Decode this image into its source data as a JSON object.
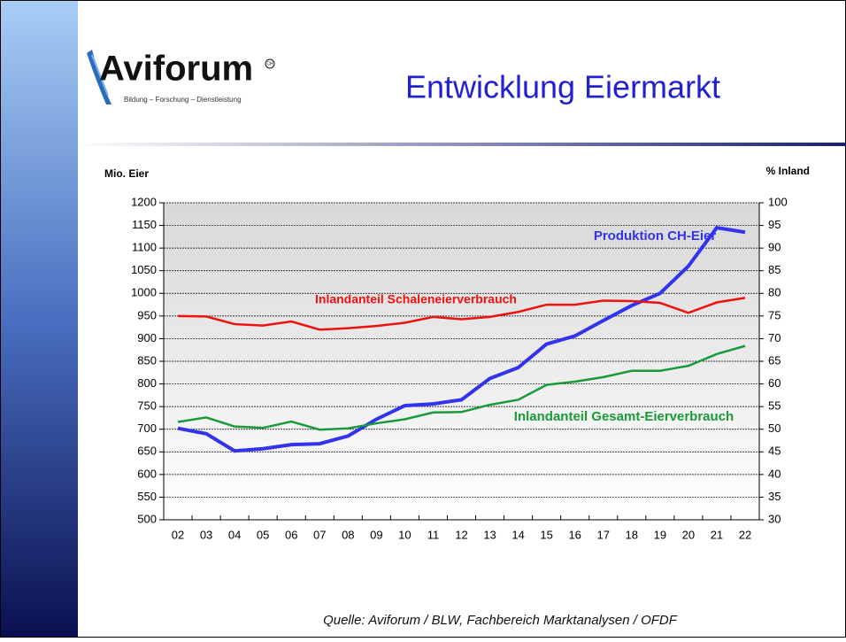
{
  "logo": {
    "name": "Aviforum",
    "mark": "CH",
    "tagline": "Bildung – Forschung – Dienstleistung"
  },
  "header": {
    "title": "Entwicklung Eiermarkt"
  },
  "chart_data": {
    "type": "line",
    "y_label": "Mio. Eier",
    "y2_label": "% Inland",
    "categories": [
      "02",
      "03",
      "04",
      "05",
      "06",
      "07",
      "08",
      "09",
      "10",
      "11",
      "12",
      "13",
      "14",
      "15",
      "16",
      "17",
      "18",
      "19",
      "20",
      "21",
      "22"
    ],
    "ylim": [
      500,
      1200
    ],
    "yticks": [
      500,
      550,
      600,
      650,
      700,
      750,
      800,
      850,
      900,
      950,
      1000,
      1050,
      1100,
      1150,
      1200
    ],
    "y2lim": [
      30,
      100
    ],
    "y2ticks": [
      30,
      35,
      40,
      45,
      50,
      55,
      60,
      65,
      70,
      75,
      80,
      85,
      90,
      95,
      100
    ],
    "grid": true,
    "series": [
      {
        "name": "Produktion CH-Eier",
        "color": "#3333ee",
        "axis": "y",
        "values": [
          702,
          690,
          652,
          657,
          666,
          668,
          685,
          722,
          752,
          756,
          765,
          812,
          836,
          888,
          906,
          940,
          973,
          1000,
          1060,
          1145,
          1135
        ]
      },
      {
        "name": "Inlandanteil Schaleneierverbrauch",
        "color": "#ee1111",
        "axis": "y2",
        "values": [
          75,
          74.9,
          73.2,
          72.9,
          73.8,
          72,
          72.3,
          72.8,
          73.5,
          74.8,
          74.3,
          74.8,
          75.9,
          77.5,
          77.5,
          78.4,
          78.3,
          77.9,
          75.7,
          78,
          79
        ]
      },
      {
        "name": "Inlandanteil Gesamt-Eierverbrauch",
        "color": "#1a9a3a",
        "axis": "y2",
        "values": [
          51.6,
          52.6,
          50.6,
          50.3,
          51.7,
          49.9,
          50.2,
          51.3,
          52.2,
          53.7,
          53.8,
          55.4,
          56.5,
          59.8,
          60.5,
          61.5,
          62.9,
          62.9,
          64,
          66.6,
          68.4
        ]
      }
    ]
  },
  "source": "Quelle: Aviforum / BLW, Fachbereich Marktanalysen / OFDF"
}
